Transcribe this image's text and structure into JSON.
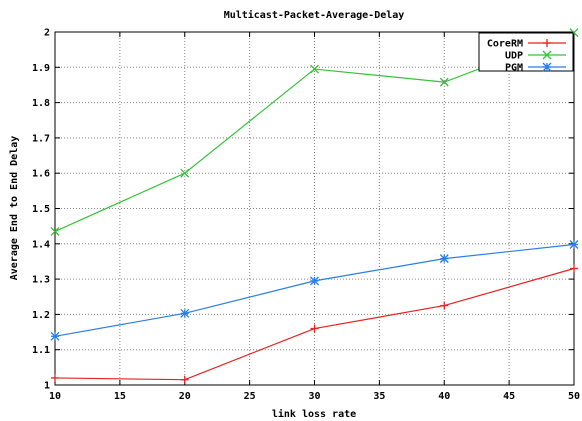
{
  "chart_data": {
    "type": "line",
    "title": "Multicast-Packet-Average-Delay",
    "xlabel": "link loss rate",
    "ylabel": "Average End to End Delay",
    "xlim": [
      10,
      50
    ],
    "ylim": [
      1,
      2
    ],
    "x_ticks": [
      10,
      15,
      20,
      25,
      30,
      35,
      40,
      45,
      50
    ],
    "y_ticks": [
      1,
      1.1,
      1.2,
      1.3,
      1.4,
      1.5,
      1.6,
      1.7,
      1.8,
      1.9,
      2
    ],
    "x_tick_labels": [
      "10",
      "15",
      "20",
      "25",
      "30",
      "35",
      "40",
      "45",
      "50"
    ],
    "y_tick_labels": [
      "1",
      "1.1",
      "1.2",
      "1.3",
      "1.4",
      "1.5",
      "1.6",
      "1.7",
      "1.8",
      "1.9",
      "2"
    ],
    "grid": true,
    "legend_position": "top-right",
    "x": [
      10,
      20,
      30,
      40,
      50
    ],
    "series": [
      {
        "name": "CoreRM",
        "color": "#e8221f",
        "marker": "plus",
        "values": [
          1.02,
          1.015,
          1.16,
          1.225,
          1.33
        ]
      },
      {
        "name": "UDP",
        "color": "#36c23a",
        "marker": "cross",
        "values": [
          1.435,
          1.6,
          1.895,
          1.858,
          1.998
        ]
      },
      {
        "name": "PGM",
        "color": "#2a7ee8",
        "marker": "star",
        "values": [
          1.138,
          1.203,
          1.295,
          1.358,
          1.398
        ]
      }
    ]
  }
}
